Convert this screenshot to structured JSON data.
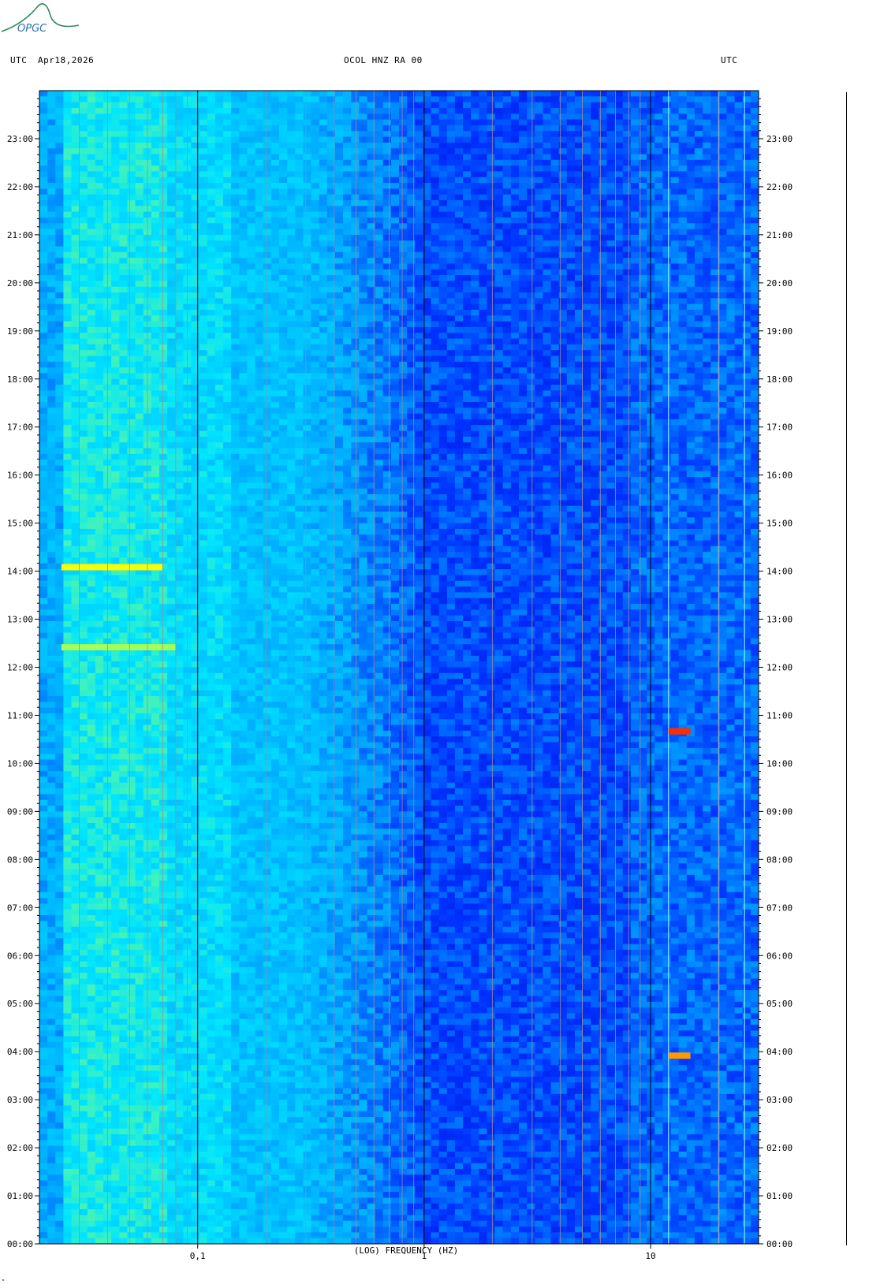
{
  "header": {
    "left_timezone": "UTC",
    "date": "Apr18,2026",
    "station": "OCOL HNZ RA 00",
    "right_timezone": "UTC"
  },
  "logo": {
    "text": "OPGC",
    "color": "#2e8b57"
  },
  "footer": {
    "corner_mark": "\""
  },
  "chart_data": {
    "type": "heatmap",
    "title": "OCOL HNZ RA 00",
    "xlabel": "(LOG) FREQUENCY (HZ)",
    "ylabel": "UTC",
    "x_scale": "log",
    "xlim": [
      0.02,
      30
    ],
    "x_ticks": [
      {
        "value": 0.1,
        "label": "0,1"
      },
      {
        "value": 1,
        "label": "1"
      },
      {
        "value": 10,
        "label": "10"
      }
    ],
    "ylim": [
      0,
      24
    ],
    "y_ticks": [
      "00:00",
      "01:00",
      "02:00",
      "03:00",
      "04:00",
      "05:00",
      "06:00",
      "07:00",
      "08:00",
      "09:00",
      "10:00",
      "11:00",
      "12:00",
      "13:00",
      "14:00",
      "15:00",
      "16:00",
      "17:00",
      "18:00",
      "19:00",
      "20:00",
      "21:00",
      "22:00",
      "23:00"
    ],
    "colormap": [
      "#0000c8",
      "#0033ff",
      "#00aaff",
      "#00e5ff",
      "#7cff7c",
      "#ffff00",
      "#ff0000"
    ],
    "background_color": "#0028d8",
    "grid": true,
    "band_lines_hz": [
      0.02,
      0.03,
      0.04,
      0.05,
      0.06,
      0.07,
      0.08,
      0.09,
      0.1,
      0.2,
      0.3,
      0.4,
      0.5,
      0.6,
      0.7,
      0.8,
      0.9,
      1,
      2,
      3,
      4,
      5,
      6,
      7,
      8,
      9,
      10,
      20,
      30
    ],
    "strong_energy_events": [
      {
        "time": "14:05",
        "freq_range_hz": [
          0.025,
          0.07
        ],
        "level": "yellow"
      },
      {
        "time": "12:25",
        "freq_range_hz": [
          0.025,
          0.08
        ],
        "level": "yellow-green"
      },
      {
        "time": "10:40",
        "freq_range_hz": [
          12,
          15
        ],
        "level": "red"
      },
      {
        "time": "03:55",
        "freq_range_hz": [
          12,
          15
        ],
        "level": "orange"
      }
    ],
    "persistent_lines_hz": [
      12,
      20,
      26
    ]
  }
}
